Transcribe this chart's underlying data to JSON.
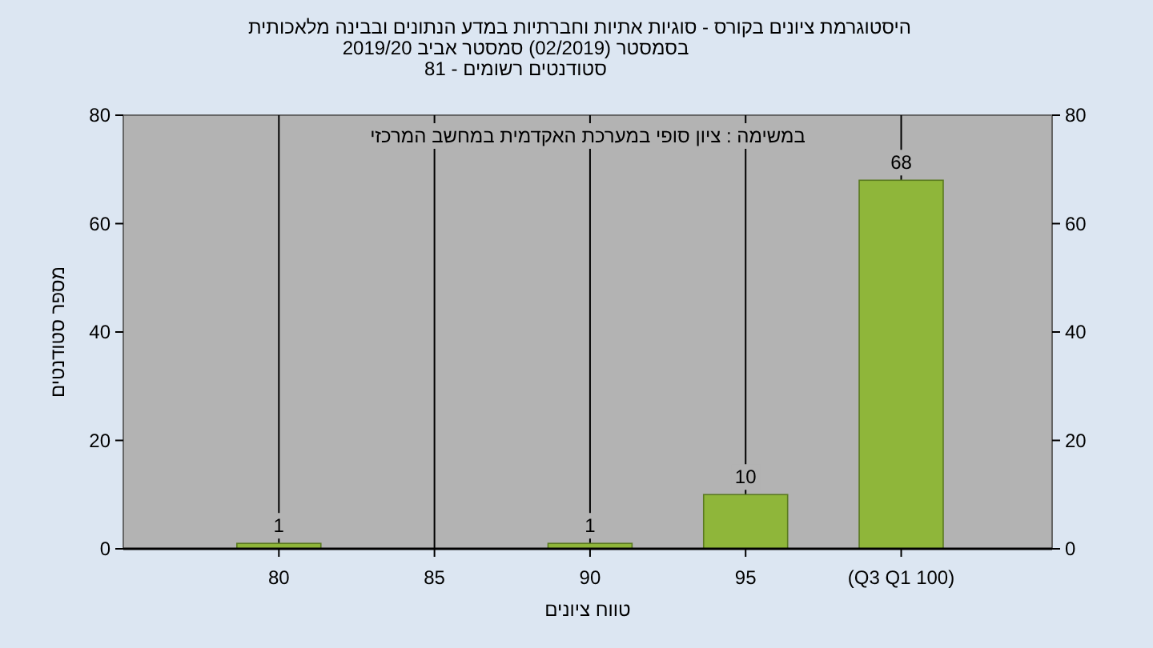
{
  "chart_data": {
    "type": "bar",
    "title": "היסטוגרמת ציונים בקורס - סוגיות אתיות וחברתיות במדע הנתונים ובבינה מלאכותית",
    "subtitle": "בסמסטר (02/2019) סמסטר אביב 2019/20\nסטודנטים רשומים - 81",
    "xlabel": "טווח ציונים",
    "ylabel": "מספר סטודנטים",
    "annotations": [
      "במשימה : ציון סופי במערכת האקדמית במחשב המרכזי"
    ],
    "categories": [
      "80",
      "85",
      "90",
      "95",
      "(Q3 Q1 100)"
    ],
    "values": [
      1,
      0,
      1,
      10,
      68
    ],
    "color": "#8fb63a",
    "value_labels": [
      "1",
      null,
      "1",
      "10",
      "68"
    ],
    "ylim": [
      0,
      80
    ],
    "yticks": [
      0,
      20,
      40,
      60,
      80
    ],
    "y2lim": [
      0,
      80
    ],
    "y2ticks": [
      0,
      20,
      40,
      60,
      80
    ],
    "grid": "x"
  }
}
